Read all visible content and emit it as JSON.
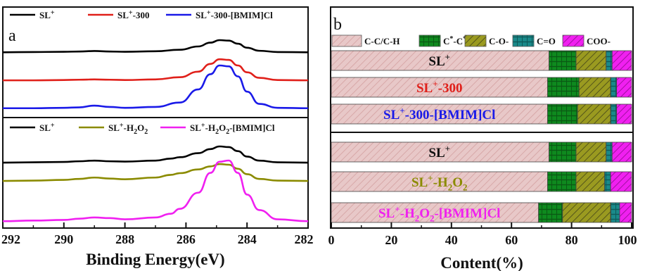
{
  "figure": {
    "panels": [
      "a",
      "b"
    ]
  },
  "chart_data": [
    {
      "type": "line",
      "panel": "a",
      "xlabel": "Binding Energy(eV)",
      "ylabel": "",
      "xlim": [
        292,
        282
      ],
      "x_ticks": [
        "292",
        "290",
        "288",
        "286",
        "284",
        "282"
      ],
      "x_reversed": true,
      "groups": [
        {
          "legend": [
            {
              "label": "SL",
              "sup": "+",
              "sub": "",
              "tail": "",
              "color": "#000000"
            },
            {
              "label": "SL",
              "sup": "+",
              "sub": "",
              "tail": "-300",
              "color": "#e0201a"
            },
            {
              "label": "SL",
              "sup": "+",
              "sub": "",
              "tail": "-300-[BMIM]Cl",
              "color": "#1a1ae8"
            }
          ],
          "series": [
            {
              "name": "SL+",
              "color": "#000000",
              "x": [
                292,
                291,
                290,
                289.5,
                289,
                288.5,
                288,
                287,
                286.2,
                285.6,
                285.2,
                284.9,
                284.6,
                284.3,
                284.0,
                283.6,
                283.0,
                282
              ],
              "y": [
                0.02,
                0.03,
                0.04,
                0.05,
                0.07,
                0.05,
                0.04,
                0.06,
                0.12,
                0.25,
                0.4,
                0.5,
                0.48,
                0.36,
                0.2,
                0.08,
                0.03,
                0.02
              ]
            },
            {
              "name": "SL+-300",
              "color": "#e0201a",
              "x": [
                292,
                291,
                290,
                289.5,
                289,
                288.5,
                288,
                287,
                286.2,
                285.6,
                285.2,
                284.9,
                284.6,
                284.3,
                284.0,
                283.6,
                283.0,
                282
              ],
              "y": [
                0.02,
                0.02,
                0.03,
                0.04,
                0.05,
                0.04,
                0.03,
                0.05,
                0.12,
                0.3,
                0.55,
                0.7,
                0.68,
                0.5,
                0.28,
                0.1,
                0.03,
                0.02
              ]
            },
            {
              "name": "SL+-300-[BMIM]Cl",
              "color": "#1a1ae8",
              "x": [
                292,
                291,
                290,
                289.5,
                289,
                288.5,
                288,
                287,
                286.2,
                285.6,
                285.2,
                284.9,
                284.6,
                284.3,
                284.0,
                283.6,
                283.0,
                282
              ],
              "y": [
                0.02,
                0.02,
                0.03,
                0.04,
                0.08,
                0.05,
                0.03,
                0.05,
                0.15,
                0.45,
                0.8,
                1.0,
                0.98,
                0.75,
                0.4,
                0.12,
                0.03,
                0.02
              ]
            }
          ]
        },
        {
          "legend": [
            {
              "label": "SL",
              "sup": "+",
              "sub": "",
              "tail": "",
              "color": "#000000"
            },
            {
              "label": "SL",
              "sup": "+",
              "sub": "2",
              "tail": "-H|O|",
              "color": "#8b8b00"
            },
            {
              "label": "SL",
              "sup": "+",
              "sub": "2",
              "tail": "-H|O|-[BMIM]Cl",
              "color": "#f020f0"
            }
          ],
          "series": [
            {
              "name": "SL+",
              "color": "#000000",
              "x": [
                292,
                291,
                290,
                289.5,
                289,
                288.5,
                288,
                287,
                286.5,
                286.2,
                285.6,
                285.2,
                284.9,
                284.6,
                284.3,
                284.0,
                283.6,
                283.0,
                282
              ],
              "y": [
                0.02,
                0.03,
                0.04,
                0.06,
                0.08,
                0.06,
                0.05,
                0.08,
                0.14,
                0.18,
                0.3,
                0.42,
                0.5,
                0.48,
                0.36,
                0.2,
                0.08,
                0.03,
                0.02
              ]
            },
            {
              "name": "SL+-H2O2",
              "color": "#8b8b00",
              "x": [
                292,
                291,
                290,
                289.5,
                289,
                288.5,
                288,
                287,
                286.5,
                286.2,
                285.6,
                285.2,
                284.9,
                284.6,
                284.3,
                284.0,
                283.6,
                283.0,
                282
              ],
              "y": [
                0.02,
                0.03,
                0.05,
                0.08,
                0.12,
                0.09,
                0.07,
                0.12,
                0.2,
                0.25,
                0.36,
                0.45,
                0.52,
                0.5,
                0.38,
                0.22,
                0.08,
                0.03,
                0.02
              ]
            },
            {
              "name": "SL+-H2O2-[BMIM]Cl",
              "color": "#f020f0",
              "x": [
                292,
                291,
                290,
                289.5,
                289,
                288.5,
                288,
                287,
                286.5,
                286.2,
                285.6,
                285.2,
                284.9,
                284.6,
                284.3,
                284.0,
                283.6,
                283.0,
                282
              ],
              "y": [
                0.02,
                0.03,
                0.04,
                0.06,
                0.08,
                0.07,
                0.05,
                0.08,
                0.14,
                0.22,
                0.48,
                0.8,
                0.98,
                1.0,
                0.8,
                0.45,
                0.2,
                0.05,
                0.02
              ]
            }
          ]
        }
      ]
    },
    {
      "type": "bar",
      "orientation": "horizontal",
      "stacked": true,
      "panel": "b",
      "xlabel": "Content(%)",
      "xlim": [
        0,
        100
      ],
      "x_ticks": [
        "0",
        "20",
        "40",
        "60",
        "80",
        "100"
      ],
      "legend": [
        {
          "label": "C-C/C-H",
          "color": "#e8c8c8",
          "hatch": "#d7a8a8"
        },
        {
          "label": "C*-C*",
          "color": "#0e8a1e",
          "hatch": "#0a5a14"
        },
        {
          "label": "C-O-",
          "color": "#9a9a20",
          "hatch": "#55551a"
        },
        {
          "label": "C=O",
          "color": "#1a8a8a",
          "hatch": "#0e5a5a"
        },
        {
          "label": "COO-",
          "color": "#f020f0",
          "hatch": "#a010a0"
        }
      ],
      "categories": [
        {
          "label": "SL",
          "sup": "+",
          "sub": "",
          "tail": "",
          "color": "#111111"
        },
        {
          "label": "SL",
          "sup": "+",
          "sub": "",
          "tail": "-300",
          "color": "#e0201a"
        },
        {
          "label": "SL",
          "sup": "+",
          "sub": "",
          "tail": "-300-[BMIM]Cl",
          "color": "#1a1ae8"
        },
        {
          "label": "SL",
          "sup": "+",
          "sub": "",
          "tail": "",
          "color": "#111111"
        },
        {
          "label": "SL",
          "sup": "+",
          "sub": "2",
          "tail": "-H|O|",
          "color": "#8b8b00"
        },
        {
          "label": "SL",
          "sup": "+",
          "sub": "2",
          "tail": "-H|O|-[BMIM]Cl",
          "color": "#f020f0"
        }
      ],
      "series": [
        {
          "name": "C-C/C-H",
          "values": [
            72.5,
            72,
            72,
            72.5,
            72,
            69
          ]
        },
        {
          "name": "C*-C*",
          "values": [
            9,
            10.5,
            10,
            9,
            9.5,
            8
          ]
        },
        {
          "name": "C-O-",
          "values": [
            10,
            10.5,
            11,
            10,
            9.5,
            16
          ]
        },
        {
          "name": "C=O",
          "values": [
            2,
            2,
            2,
            2,
            2,
            3
          ]
        },
        {
          "name": "COO-",
          "values": [
            6.5,
            5,
            5,
            6.5,
            7,
            4
          ]
        }
      ]
    }
  ]
}
